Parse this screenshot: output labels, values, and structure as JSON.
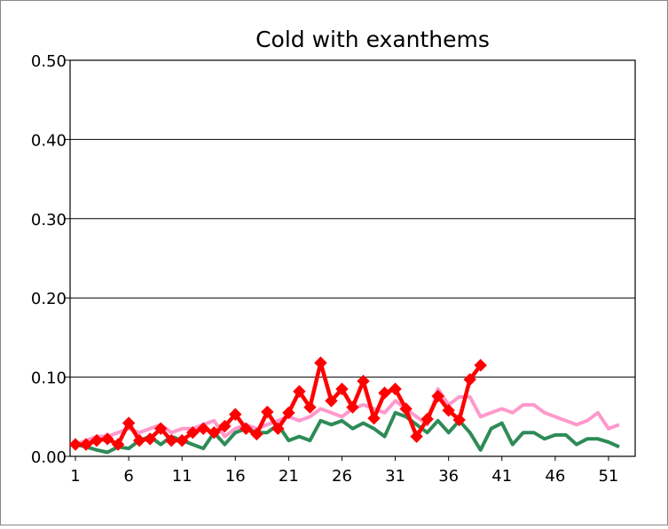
{
  "chart_data": {
    "type": "line",
    "title": "Cold with exanthems",
    "xlabel": "",
    "ylabel": "",
    "ylim": [
      0,
      0.5
    ],
    "y_ticks": [
      "0.00",
      "0.10",
      "0.20",
      "0.30",
      "0.40",
      "0.50"
    ],
    "x_ticks": [
      "1",
      "6",
      "11",
      "16",
      "21",
      "26",
      "31",
      "36",
      "41",
      "46",
      "51"
    ],
    "xlim": [
      1,
      52
    ],
    "grid": true,
    "legend": "none",
    "series": [
      {
        "color": "#ff99cc",
        "marker": "none",
        "x": [
          1,
          2,
          3,
          4,
          5,
          6,
          7,
          8,
          9,
          10,
          11,
          12,
          13,
          14,
          15,
          16,
          17,
          18,
          19,
          20,
          21,
          22,
          23,
          24,
          25,
          26,
          27,
          28,
          29,
          30,
          31,
          32,
          33,
          34,
          35,
          36,
          37,
          38,
          39,
          40,
          41,
          42,
          43,
          44,
          45,
          46,
          47,
          48,
          49,
          50,
          51,
          52
        ],
        "values": [
          0.015,
          0.02,
          0.025,
          0.025,
          0.03,
          0.035,
          0.03,
          0.035,
          0.04,
          0.03,
          0.035,
          0.035,
          0.04,
          0.045,
          0.025,
          0.035,
          0.04,
          0.035,
          0.04,
          0.045,
          0.05,
          0.045,
          0.05,
          0.06,
          0.055,
          0.05,
          0.06,
          0.065,
          0.06,
          0.055,
          0.07,
          0.06,
          0.05,
          0.04,
          0.085,
          0.065,
          0.075,
          0.075,
          0.05,
          0.055,
          0.06,
          0.055,
          0.065,
          0.065,
          0.055,
          0.05,
          0.045,
          0.04,
          0.045,
          0.055,
          0.035,
          0.04
        ]
      },
      {
        "color": "#2e8b57",
        "marker": "none",
        "x": [
          1,
          2,
          3,
          4,
          5,
          6,
          7,
          8,
          9,
          10,
          11,
          12,
          13,
          14,
          15,
          16,
          17,
          18,
          19,
          20,
          21,
          22,
          23,
          24,
          25,
          26,
          27,
          28,
          29,
          30,
          31,
          32,
          33,
          34,
          35,
          36,
          37,
          38,
          39,
          40,
          41,
          42,
          43,
          44,
          45,
          46,
          47,
          48,
          49,
          50,
          51,
          52
        ],
        "values": [
          0.015,
          0.012,
          0.008,
          0.005,
          0.012,
          0.01,
          0.02,
          0.025,
          0.015,
          0.025,
          0.02,
          0.015,
          0.01,
          0.03,
          0.015,
          0.03,
          0.035,
          0.03,
          0.03,
          0.04,
          0.02,
          0.025,
          0.02,
          0.045,
          0.04,
          0.045,
          0.035,
          0.042,
          0.035,
          0.025,
          0.055,
          0.05,
          0.04,
          0.03,
          0.045,
          0.03,
          0.045,
          0.03,
          0.008,
          0.035,
          0.042,
          0.015,
          0.03,
          0.03,
          0.022,
          0.027,
          0.027,
          0.015,
          0.022,
          0.022,
          0.018,
          0.012
        ]
      },
      {
        "color": "#ff0000",
        "marker": "diamond",
        "x": [
          1,
          2,
          3,
          4,
          5,
          6,
          7,
          8,
          9,
          10,
          11,
          12,
          13,
          14,
          15,
          16,
          17,
          18,
          19,
          20,
          21,
          22,
          23,
          24,
          25,
          26,
          27,
          28,
          29,
          30,
          31,
          32,
          33,
          34,
          35,
          36,
          37,
          38,
          39
        ],
        "values": [
          0.015,
          0.015,
          0.02,
          0.022,
          0.015,
          0.042,
          0.02,
          0.022,
          0.035,
          0.02,
          0.02,
          0.03,
          0.035,
          0.03,
          0.038,
          0.053,
          0.035,
          0.028,
          0.056,
          0.035,
          0.055,
          0.082,
          0.062,
          0.118,
          0.07,
          0.085,
          0.062,
          0.095,
          0.048,
          0.08,
          0.085,
          0.06,
          0.025,
          0.047,
          0.076,
          0.058,
          0.046,
          0.097,
          0.115
        ]
      }
    ]
  }
}
